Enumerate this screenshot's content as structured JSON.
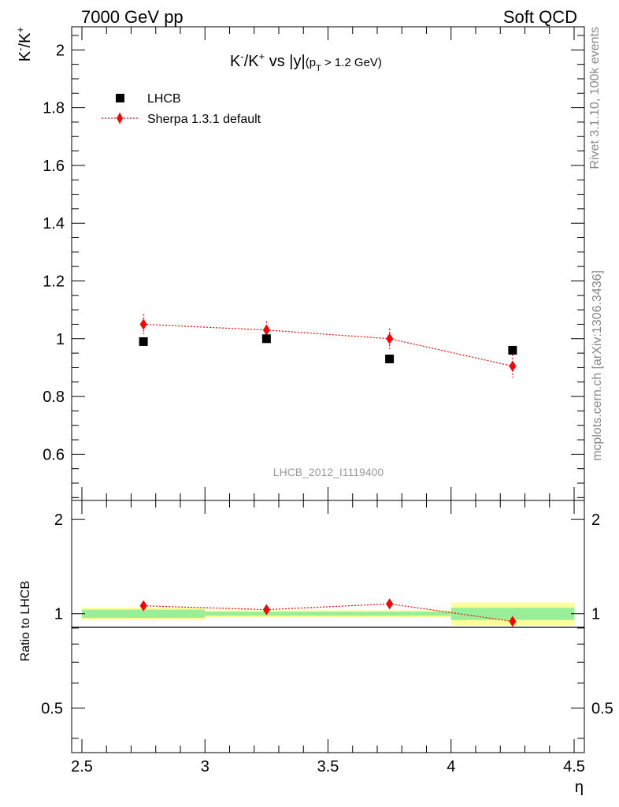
{
  "header": {
    "left": "7000 GeV pp",
    "right": "Soft QCD"
  },
  "side": {
    "rivet": "Rivet 3.1.10,  100k events",
    "source": "mcplots.cern.ch [arXiv:1306.3436]"
  },
  "chart_data": [
    {
      "type": "scatter",
      "panel": "main",
      "title_main": "K",
      "title_sup1": "-",
      "title_mid": "/K",
      "title_sup2": "+",
      "title_rest": " vs |y|",
      "title_cut": "(p",
      "title_cut_sub": "T",
      "title_cut_rest": " > 1.2 GeV)",
      "ylabel_main": "K",
      "ylabel_sup1": "-",
      "ylabel_mid": "/K",
      "ylabel_sup2": "+",
      "xlabel": "η",
      "watermark": "LHCB_2012_I1119400",
      "xlim": [
        2.5,
        4.5
      ],
      "ylim": [
        0.44,
        2.08
      ],
      "x_ticks": [
        "2.5",
        "3",
        "3.5",
        "4",
        "4.5"
      ],
      "y_ticks": [
        "0.6",
        "0.8",
        "1",
        "1.2",
        "1.4",
        "1.6",
        "1.8",
        "2"
      ],
      "legend_position": "top-left",
      "series": [
        {
          "name": "LHCB",
          "color": "#000000",
          "marker": "square",
          "x": [
            2.75,
            3.25,
            3.75,
            4.25
          ],
          "y": [
            0.99,
            1.0,
            0.93,
            0.96
          ]
        },
        {
          "name": "Sherpa 1.3.1 default",
          "color": "#ff0000",
          "marker": "diamond",
          "line": "dotted",
          "x": [
            2.75,
            3.25,
            3.75,
            4.25
          ],
          "y": [
            1.05,
            1.03,
            1.0,
            0.905
          ],
          "yerr": [
            0.035,
            0.03,
            0.035,
            0.04
          ]
        }
      ]
    },
    {
      "type": "scatter",
      "panel": "ratio",
      "ylabel": "Ratio to LHCB",
      "xlim": [
        2.5,
        4.5
      ],
      "ylim": [
        0.36,
        2.3
      ],
      "log_y": true,
      "y_ticks": [
        "0.5",
        "1",
        "2"
      ],
      "reference_line": 1,
      "bands": [
        {
          "x": [
            2.5,
            3.0
          ],
          "yellow": [
            0.955,
            1.045
          ],
          "green": [
            0.97,
            1.03
          ]
        },
        {
          "x": [
            3.0,
            3.5
          ],
          "yellow": [
            0.975,
            1.025
          ],
          "green": [
            0.985,
            1.015
          ]
        },
        {
          "x": [
            3.5,
            4.0
          ],
          "yellow": [
            0.975,
            1.025
          ],
          "green": [
            0.985,
            1.015
          ]
        },
        {
          "x": [
            4.0,
            4.5
          ],
          "yellow": [
            0.92,
            1.085
          ],
          "green": [
            0.955,
            1.045
          ]
        }
      ],
      "series": [
        {
          "name": "Sherpa 1.3.1 default",
          "color": "#ff0000",
          "x": [
            2.75,
            3.25,
            3.75,
            4.25
          ],
          "y": [
            1.06,
            1.03,
            1.075,
            0.945
          ],
          "yerr": [
            0.018,
            0.018,
            0.02,
            0.018
          ]
        }
      ]
    }
  ]
}
